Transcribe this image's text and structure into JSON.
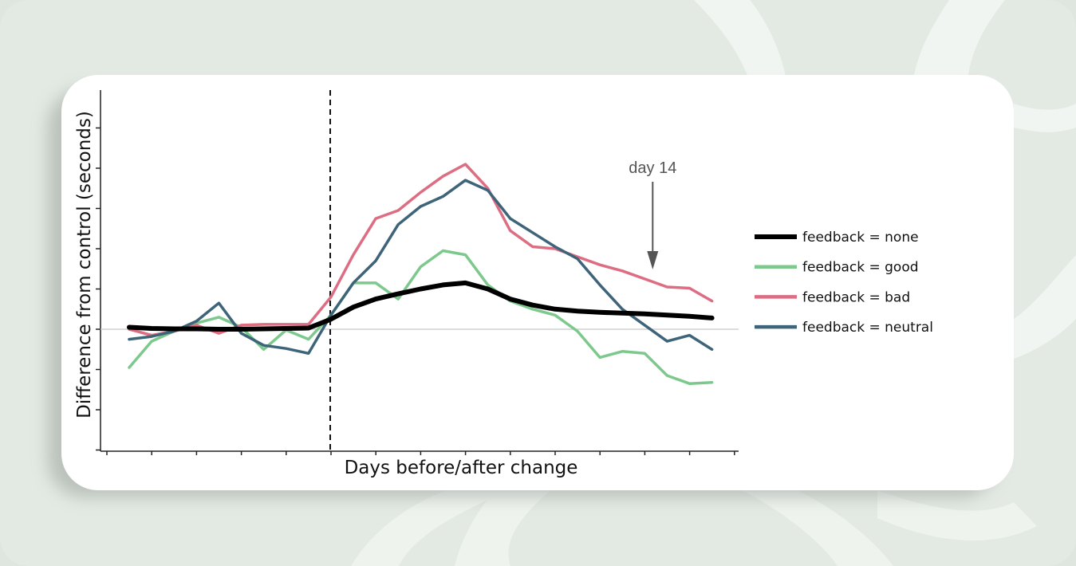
{
  "chart_data": {
    "type": "line",
    "title": "",
    "xlabel": "Days before/after change",
    "ylabel": "Difference from control (seconds)",
    "x": [
      -9,
      -8,
      -7,
      -6,
      -5,
      -4,
      -3,
      -2,
      -1,
      0,
      1,
      2,
      3,
      4,
      5,
      6,
      7,
      8,
      9,
      10,
      11,
      12,
      13,
      14,
      15,
      16,
      17
    ],
    "change_day": 0,
    "ylim": [
      -3,
      6
    ],
    "series": [
      {
        "name": "feedback = none",
        "color": "#000000",
        "width": 6,
        "values": [
          0.05,
          0.02,
          0.01,
          0.01,
          0.0,
          0.0,
          0.01,
          0.02,
          0.03,
          0.25,
          0.55,
          0.75,
          0.88,
          1.0,
          1.1,
          1.15,
          1.0,
          0.75,
          0.6,
          0.5,
          0.45,
          0.42,
          0.4,
          0.38,
          0.35,
          0.32,
          0.28
        ]
      },
      {
        "name": "feedback = good",
        "color": "#7dc98d",
        "width": 3.5,
        "values": [
          -0.95,
          -0.3,
          -0.05,
          0.15,
          0.3,
          0.05,
          -0.5,
          -0.02,
          -0.25,
          0.35,
          1.15,
          1.15,
          0.75,
          1.55,
          1.95,
          1.85,
          1.1,
          0.7,
          0.5,
          0.35,
          -0.05,
          -0.7,
          -0.55,
          -0.6,
          -1.15,
          -1.35,
          -1.32
        ]
      },
      {
        "name": "feedback = bad",
        "color": "#dd6d82",
        "width": 3.5,
        "values": [
          0.0,
          -0.15,
          -0.05,
          0.1,
          -0.1,
          0.1,
          0.12,
          0.12,
          0.12,
          0.8,
          1.85,
          2.75,
          2.95,
          3.4,
          3.8,
          4.1,
          3.5,
          2.45,
          2.05,
          2.0,
          1.8,
          1.6,
          1.45,
          1.25,
          1.05,
          1.02,
          0.7
        ]
      },
      {
        "name": "feedback = neutral",
        "color": "#3e6479",
        "width": 3.5,
        "values": [
          -0.25,
          -0.18,
          -0.05,
          0.2,
          0.65,
          -0.1,
          -0.4,
          -0.48,
          -0.6,
          0.35,
          1.15,
          1.7,
          2.6,
          3.05,
          3.3,
          3.7,
          3.45,
          2.75,
          2.4,
          2.05,
          1.75,
          1.1,
          0.5,
          0.1,
          -0.3,
          -0.15,
          -0.5
        ]
      }
    ],
    "annotation": {
      "text": "day 14",
      "x": 14
    },
    "legend": "right",
    "grid": false,
    "zero_line": true
  }
}
